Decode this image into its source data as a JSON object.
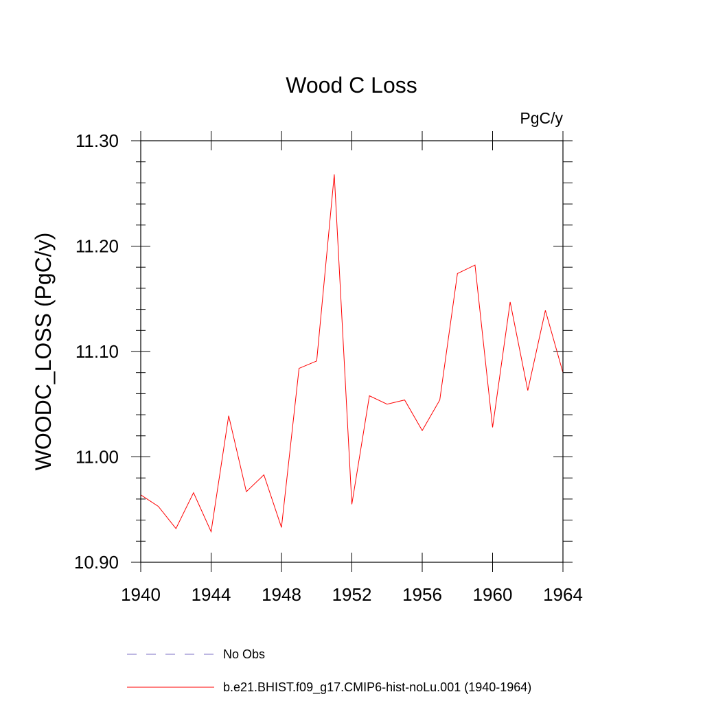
{
  "chart_data": {
    "type": "line",
    "title": "Wood C Loss",
    "units_label": "PgC/y",
    "ylabel": "WOODC_LOSS  (PgC/y)",
    "xlabel": "",
    "xlim": [
      1940,
      1964
    ],
    "ylim": [
      10.9,
      11.3
    ],
    "x_ticks": [
      1940,
      1944,
      1948,
      1952,
      1956,
      1960,
      1964
    ],
    "x_tick_labels": [
      "1940",
      "1944",
      "1948",
      "1952",
      "1956",
      "1960",
      "1964"
    ],
    "y_ticks": [
      10.9,
      11.0,
      11.1,
      11.2,
      11.3
    ],
    "y_tick_labels": [
      "10.90",
      "11.00",
      "11.10",
      "11.20",
      "11.30"
    ],
    "grid": false,
    "legend_position": "bottom",
    "series": [
      {
        "name": "b.e21.BHIST.f09_g17.CMIP6-hist-noLu.001 (1940-1964)",
        "color": "#ff0000",
        "style": "solid",
        "x": [
          1940,
          1941,
          1942,
          1943,
          1944,
          1945,
          1946,
          1947,
          1948,
          1949,
          1950,
          1951,
          1952,
          1953,
          1954,
          1955,
          1956,
          1957,
          1958,
          1959,
          1960,
          1961,
          1962,
          1963,
          1964
        ],
        "values": [
          10.964,
          10.953,
          10.932,
          10.966,
          10.929,
          11.039,
          10.967,
          10.983,
          10.933,
          11.084,
          11.091,
          11.268,
          10.955,
          11.058,
          11.05,
          11.054,
          11.025,
          11.054,
          11.174,
          11.182,
          11.028,
          11.147,
          11.063,
          11.139,
          11.08
        ]
      }
    ],
    "legend": [
      {
        "label": "No Obs",
        "color": "#7b6fc4",
        "style": "dashed"
      },
      {
        "label": "b.e21.BHIST.f09_g17.CMIP6-hist-noLu.001 (1940-1964)",
        "color": "#ff0000",
        "style": "solid"
      }
    ]
  }
}
